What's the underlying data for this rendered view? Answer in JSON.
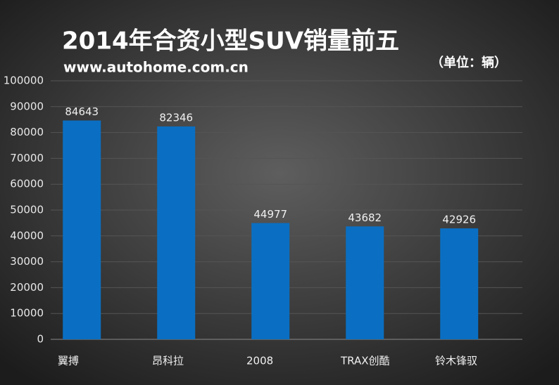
{
  "chart_data": {
    "type": "bar",
    "title": "2014年合资小型SUV销量前五",
    "subtitle": "www.autohome.com.cn",
    "unit_note": "（单位：辆）",
    "categories": [
      "翼搏",
      "昂科拉",
      "2008",
      "TRAX创酷",
      "铃木锋驭"
    ],
    "values": [
      84643,
      82346,
      44977,
      43682,
      42926
    ],
    "color": "#0a6fc2",
    "ylim": [
      0,
      100000
    ],
    "yticks": [
      0,
      10000,
      20000,
      30000,
      40000,
      50000,
      60000,
      70000,
      80000,
      90000,
      100000
    ],
    "grid": true
  }
}
